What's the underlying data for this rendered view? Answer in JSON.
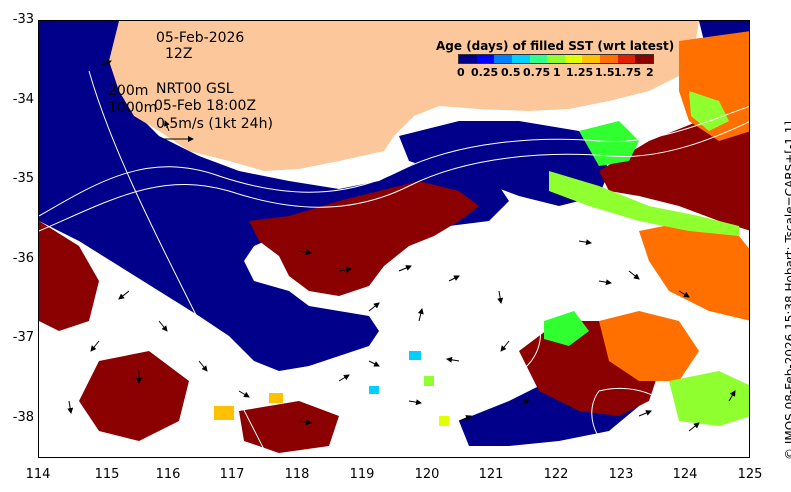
{
  "map": {
    "date": "05-Feb-2026",
    "hour": "12Z",
    "depth_label": "200m",
    "depth_label2": "1000m",
    "product": "NRT00 GSL",
    "valid_time": "05-Feb 18:00Z",
    "vector_scale": "0.5m/s (1kt 24h)",
    "x_ticks": [
      "114",
      "115",
      "116",
      "117",
      "118",
      "119",
      "120",
      "121",
      "122",
      "123",
      "124",
      "125"
    ],
    "y_ticks": [
      "-33",
      "-34",
      "-35",
      "-36",
      "-37",
      "-38"
    ]
  },
  "colorbar": {
    "title": "Age (days) of filled SST (wrt latest)",
    "ticks": [
      "0",
      "0.25",
      "0.5",
      "0.75",
      "1",
      "1.25",
      "1.5",
      "1.75",
      "2"
    ],
    "colors": [
      "#00008b",
      "#0000ff",
      "#0080ff",
      "#00d0ff",
      "#30ff90",
      "#90ff30",
      "#e0ff00",
      "#ffc000",
      "#ff7000",
      "#e02000",
      "#8b0000"
    ]
  },
  "caption": "© IMOS 08-Feb-2026 15:38 Hobart; Tscale=CARS+[-1 1]"
}
